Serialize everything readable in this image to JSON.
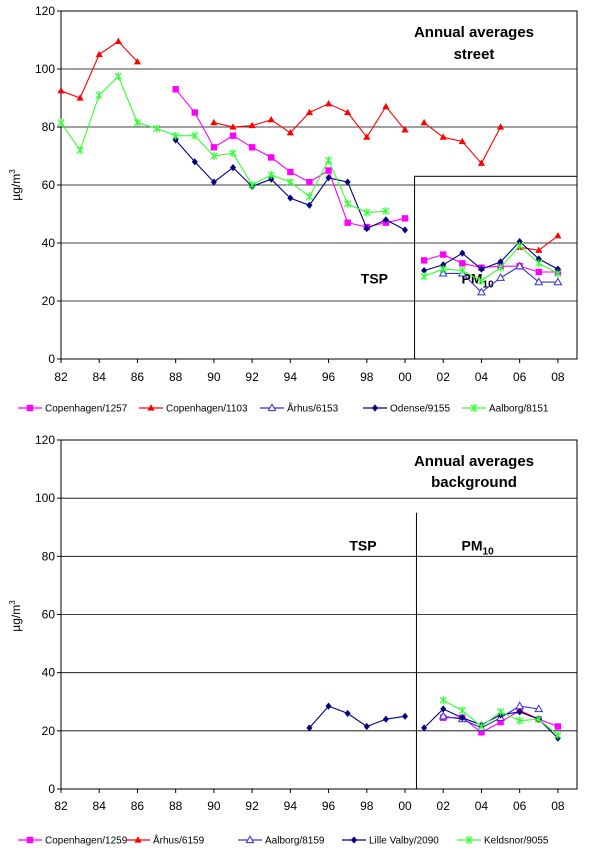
{
  "chart_data": [
    {
      "type": "line",
      "title": "Annual averages street",
      "title_lines": [
        "Annual averages",
        "street"
      ],
      "ylabel": "µg/m",
      "ylabel_sup": "3",
      "ylim": [
        0,
        120
      ],
      "yticks": [
        0,
        20,
        40,
        60,
        80,
        100,
        120
      ],
      "xlim": [
        1982,
        2009
      ],
      "xticks": [
        "82",
        "84",
        "86",
        "88",
        "90",
        "92",
        "94",
        "96",
        "98",
        "00",
        "02",
        "04",
        "06",
        "08"
      ],
      "grid": true,
      "legend": "bottom",
      "annotations": [
        {
          "text": "TSP",
          "sub": ""
        },
        {
          "text": "PM",
          "sub": "10"
        }
      ],
      "series": [
        {
          "name": "Copenhagen/1257",
          "color": "#ff00ff",
          "marker": "square",
          "segments": [
            [
              [
                1988,
                93
              ],
              [
                1989,
                85
              ],
              [
                1990,
                73
              ],
              [
                1991,
                77
              ],
              [
                1992,
                73
              ],
              [
                1993,
                69.5
              ],
              [
                1994,
                64.5
              ],
              [
                1995,
                61
              ],
              [
                1996,
                65
              ],
              [
                1997,
                47
              ],
              [
                1998,
                45.5
              ],
              [
                1999,
                47
              ],
              [
                2000,
                48.5
              ]
            ],
            [
              [
                2001,
                34
              ],
              [
                2002,
                36
              ],
              [
                2003,
                33
              ],
              [
                2004,
                31.5
              ],
              [
                2005,
                32
              ],
              [
                2006,
                32
              ],
              [
                2007,
                30
              ],
              [
                2008,
                30
              ]
            ]
          ]
        },
        {
          "name": "Copenhagen/1103",
          "color": "#ff0000",
          "marker": "triangle",
          "segments": [
            [
              [
                1982,
                92.5
              ],
              [
                1983,
                90
              ],
              [
                1984,
                105
              ],
              [
                1985,
                109.5
              ],
              [
                1986,
                102.5
              ]
            ],
            [
              [
                1990,
                81.5
              ],
              [
                1991,
                80
              ],
              [
                1992,
                80.5
              ],
              [
                1993,
                82.5
              ],
              [
                1994,
                78
              ],
              [
                1995,
                85
              ],
              [
                1996,
                88
              ],
              [
                1997,
                85
              ],
              [
                1998,
                76.5
              ],
              [
                1999,
                87
              ],
              [
                2000,
                79
              ]
            ],
            [
              [
                2001,
                81.5
              ],
              [
                2002,
                76.5
              ],
              [
                2003,
                75
              ],
              [
                2004,
                67.5
              ],
              [
                2005,
                80
              ]
            ],
            [
              [
                2006,
                38.5
              ],
              [
                2007,
                37.5
              ],
              [
                2008,
                42.5
              ]
            ]
          ]
        },
        {
          "name": "Århus/6153",
          "color": "#3333cc",
          "marker": "triangle-open",
          "segments": [
            [
              [
                2002,
                29.5
              ],
              [
                2003,
                29.5
              ],
              [
                2004,
                23
              ],
              [
                2005,
                28
              ],
              [
                2006,
                32
              ],
              [
                2007,
                26.5
              ],
              [
                2008,
                26.5
              ]
            ]
          ]
        },
        {
          "name": "Odense/9155",
          "color": "#000080",
          "marker": "diamond",
          "segments": [
            [
              [
                1988,
                75.5
              ],
              [
                1989,
                68
              ],
              [
                1990,
                61
              ],
              [
                1991,
                66
              ],
              [
                1992,
                59.5
              ],
              [
                1993,
                62
              ],
              [
                1994,
                55.5
              ],
              [
                1995,
                53
              ],
              [
                1996,
                62.5
              ],
              [
                1997,
                61
              ],
              [
                1998,
                45
              ],
              [
                1999,
                48
              ],
              [
                2000,
                44.5
              ]
            ],
            [
              [
                2001,
                30.5
              ],
              [
                2002,
                32.5
              ],
              [
                2003,
                36.5
              ],
              [
                2004,
                31
              ],
              [
                2005,
                33.5
              ],
              [
                2006,
                40.5
              ],
              [
                2007,
                34.5
              ],
              [
                2008,
                31
              ]
            ]
          ]
        },
        {
          "name": "Aalborg/8151",
          "color": "#33ff33",
          "marker": "star",
          "segments": [
            [
              [
                1982,
                81.5
              ],
              [
                1983,
                72
              ],
              [
                1984,
                91
              ],
              [
                1985,
                97.5
              ],
              [
                1986,
                81.5
              ],
              [
                1987,
                79.5
              ],
              [
                1988,
                77
              ],
              [
                1989,
                77
              ],
              [
                1990,
                70
              ],
              [
                1991,
                71
              ],
              [
                1992,
                60
              ],
              [
                1993,
                63.5
              ],
              [
                1994,
                61
              ],
              [
                1995,
                56
              ],
              [
                1996,
                68.5
              ],
              [
                1997,
                53.5
              ],
              [
                1998,
                50.5
              ],
              [
                1999,
                51
              ]
            ],
            [
              [
                2001,
                28.5
              ],
              [
                2002,
                31
              ],
              [
                2003,
                30.5
              ],
              [
                2004,
                27
              ],
              [
                2005,
                31.5
              ],
              [
                2006,
                39
              ],
              [
                2007,
                33
              ],
              [
                2008,
                29.5
              ]
            ]
          ]
        }
      ]
    },
    {
      "type": "line",
      "title": "Annual averages background",
      "title_lines": [
        "Annual averages",
        "background"
      ],
      "ylabel": "µg/m",
      "ylabel_sup": "3",
      "ylim": [
        0,
        120
      ],
      "yticks": [
        0,
        20,
        40,
        60,
        80,
        100,
        120
      ],
      "xlim": [
        1982,
        2009
      ],
      "xticks": [
        "82",
        "84",
        "86",
        "88",
        "90",
        "92",
        "94",
        "96",
        "98",
        "00",
        "02",
        "04",
        "06",
        "08"
      ],
      "grid": true,
      "legend": "bottom",
      "annotations": [
        {
          "text": "TSP",
          "sub": ""
        },
        {
          "text": "PM",
          "sub": "10"
        }
      ],
      "series": [
        {
          "name": "Copenhagen/1259",
          "color": "#ff00ff",
          "marker": "square",
          "segments": [
            [
              [
                2002,
                24.5
              ],
              [
                2003,
                24.5
              ],
              [
                2004,
                19.5
              ],
              [
                2005,
                23
              ],
              [
                2006,
                27
              ],
              [
                2007,
                24
              ],
              [
                2008,
                21.5
              ]
            ]
          ]
        },
        {
          "name": "Århus/6159",
          "color": "#ff0000",
          "marker": "triangle",
          "segments": [
            [
              [
                2006,
                27
              ],
              [
                2007,
                24
              ]
            ]
          ]
        },
        {
          "name": "Aalborg/8159",
          "color": "#3333cc",
          "marker": "triangle-open",
          "segments": [
            [
              [
                2002,
                25
              ],
              [
                2003,
                24
              ],
              [
                2004,
                21
              ],
              [
                2005,
                24.5
              ],
              [
                2006,
                28.5
              ],
              [
                2007,
                27.5
              ]
            ]
          ]
        },
        {
          "name": "Lille Valby/2090",
          "color": "#000080",
          "marker": "diamond",
          "segments": [
            [
              [
                1995,
                21
              ],
              [
                1996,
                28.5
              ],
              [
                1997,
                26
              ],
              [
                1998,
                21.5
              ],
              [
                1999,
                24
              ],
              [
                2000,
                25
              ]
            ],
            [
              [
                2001,
                21
              ],
              [
                2002,
                27.5
              ],
              [
                2003,
                24.5
              ],
              [
                2004,
                22
              ],
              [
                2005,
                25.5
              ],
              [
                2006,
                26.5
              ],
              [
                2007,
                24
              ],
              [
                2008,
                17.5
              ]
            ]
          ]
        },
        {
          "name": "Keldsnor/9055",
          "color": "#33ff33",
          "marker": "star",
          "segments": [
            [
              [
                2002,
                30.5
              ],
              [
                2003,
                27
              ],
              [
                2004,
                21.5
              ],
              [
                2005,
                26.5
              ],
              [
                2006,
                23.5
              ],
              [
                2007,
                24
              ],
              [
                2008,
                18.5
              ]
            ]
          ]
        }
      ]
    }
  ]
}
